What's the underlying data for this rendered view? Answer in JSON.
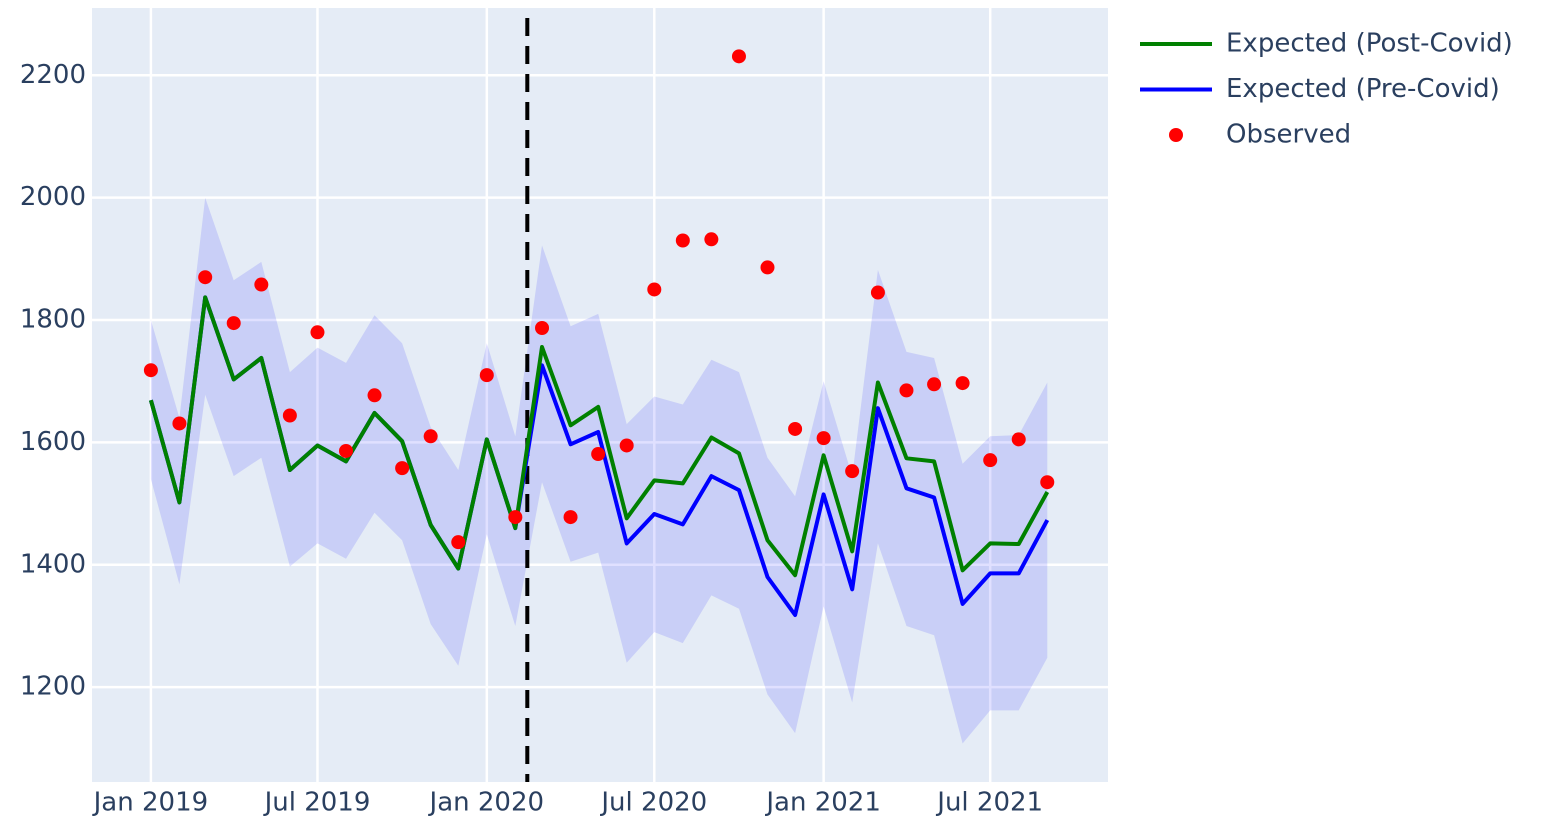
{
  "chart_data": {
    "type": "line",
    "x": [
      "2019-01",
      "2019-02",
      "2019-03",
      "2019-04",
      "2019-05",
      "2019-06",
      "2019-07",
      "2019-08",
      "2019-09",
      "2019-10",
      "2019-11",
      "2019-12",
      "2020-01",
      "2020-02",
      "2020-03",
      "2020-04",
      "2020-05",
      "2020-06",
      "2020-07",
      "2020-08",
      "2020-09",
      "2020-10",
      "2020-11",
      "2020-12",
      "2021-01",
      "2021-02",
      "2021-03",
      "2021-04",
      "2021-05",
      "2021-06",
      "2021-07",
      "2021-08",
      "2021-09"
    ],
    "band": {
      "color": "rgba(0,0,255,0.12)",
      "upper": [
        1800,
        1640,
        2000,
        1865,
        1895,
        1715,
        1755,
        1730,
        1808,
        1762,
        1625,
        1555,
        1762,
        1610,
        1922,
        1790,
        1810,
        1630,
        1675,
        1662,
        1735,
        1715,
        1575,
        1512,
        1700,
        1545,
        1882,
        1748,
        1738,
        1565,
        1610,
        1612,
        1698
      ],
      "lower": [
        1540,
        1368,
        1678,
        1545,
        1575,
        1397,
        1435,
        1410,
        1485,
        1440,
        1303,
        1235,
        1450,
        1300,
        1535,
        1405,
        1420,
        1240,
        1290,
        1272,
        1350,
        1328,
        1188,
        1125,
        1332,
        1175,
        1435,
        1300,
        1285,
        1108,
        1162,
        1162,
        1248
      ]
    },
    "series": [
      {
        "name": "Expected (Post-Covid)",
        "color": "#008000",
        "mode": "lines",
        "values": [
          1669,
          1502,
          1837,
          1703,
          1738,
          1555,
          1595,
          1569,
          1648,
          1602,
          1465,
          1394,
          1605,
          1460,
          1756,
          1628,
          1658,
          1476,
          1538,
          1533,
          1608,
          1582,
          1440,
          1383,
          1579,
          1422,
          1698,
          1574,
          1569,
          1391,
          1435,
          1434,
          1519
        ]
      },
      {
        "name": "Expected (Pre-Covid)",
        "color": "#0000ff",
        "mode": "lines",
        "values": [
          1669,
          1502,
          1837,
          1703,
          1738,
          1555,
          1595,
          1569,
          1648,
          1602,
          1465,
          1394,
          1605,
          1460,
          1726,
          1597,
          1617,
          1435,
          1483,
          1466,
          1545,
          1522,
          1380,
          1318,
          1515,
          1360,
          1656,
          1525,
          1510,
          1336,
          1386,
          1386,
          1473
        ]
      },
      {
        "name": "Observed",
        "color": "#ff0000",
        "mode": "markers",
        "values": [
          1718,
          1631,
          1870,
          1795,
          1858,
          1644,
          1780,
          1586,
          1677,
          1558,
          1610,
          1437,
          1710,
          1478,
          1787,
          1478,
          1581,
          1595,
          1850,
          1930,
          1932,
          2231,
          1886,
          1622,
          1607,
          1553,
          1845,
          1685,
          1695,
          1697,
          1571,
          1605,
          1535
        ]
      }
    ],
    "vline": "2020-02-14",
    "xlim": [
      "2018-10-29",
      "2021-11-06"
    ],
    "xticks": [
      {
        "value": "2019-01",
        "label": "Jan 2019"
      },
      {
        "value": "2019-07",
        "label": "Jul 2019"
      },
      {
        "value": "2020-01",
        "label": "Jan 2020"
      },
      {
        "value": "2020-07",
        "label": "Jul 2020"
      },
      {
        "value": "2021-01",
        "label": "Jan 2021"
      },
      {
        "value": "2021-07",
        "label": "Jul 2021"
      }
    ],
    "ylim": [
      1045,
      2310
    ],
    "yticks": [
      1200,
      1400,
      1600,
      1800,
      2000,
      2200
    ],
    "grid": true,
    "legend": "right"
  }
}
